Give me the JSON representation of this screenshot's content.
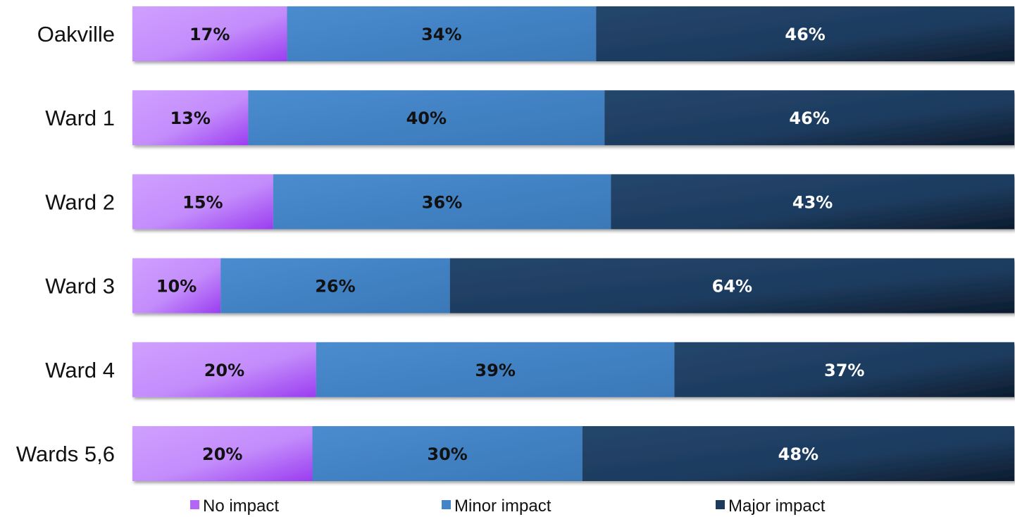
{
  "chart_data": {
    "type": "bar",
    "orientation": "horizontal",
    "stacked": true,
    "percent_stacked": true,
    "title": "",
    "xlabel": "",
    "ylabel": "",
    "grid": false,
    "legend_position": "bottom",
    "categories": [
      "Oakville",
      "Ward 1",
      "Ward 2",
      "Ward 3",
      "Ward 4",
      "Wards 5,6"
    ],
    "series": [
      {
        "name": "No impact",
        "values": [
          17,
          13,
          15,
          10,
          20,
          20
        ],
        "color": "#b565f5",
        "label_color": "#111111"
      },
      {
        "name": "Minor impact",
        "values": [
          34,
          40,
          36,
          26,
          39,
          30
        ],
        "color": "#4384c6",
        "label_color": "#111111"
      },
      {
        "name": "Major impact",
        "values": [
          46,
          46,
          43,
          64,
          37,
          48
        ],
        "color": "#1b3a5c",
        "label_color": "#ffffff"
      }
    ],
    "value_suffix": "%"
  }
}
